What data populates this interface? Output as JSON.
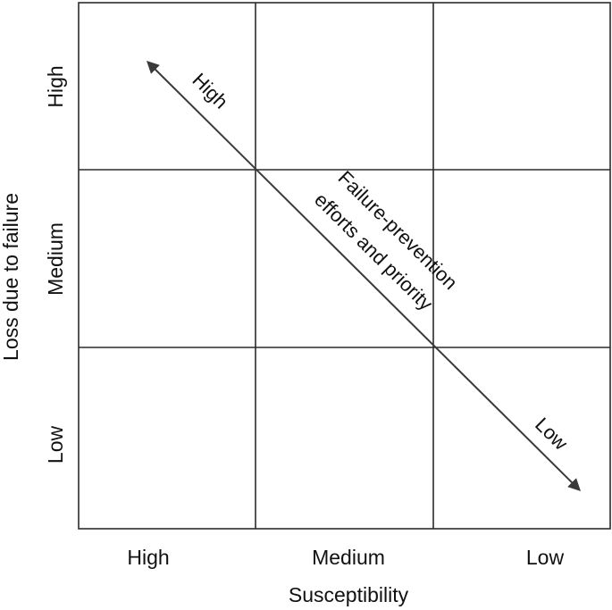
{
  "x_axis": {
    "title": "Susceptibility",
    "ticks": [
      "High",
      "Medium",
      "Low"
    ]
  },
  "y_axis": {
    "title": "Loss due to failure",
    "ticks": [
      "High",
      "Medium",
      "Low"
    ]
  },
  "arrow": {
    "high_end_label": "High",
    "low_end_label": "Low",
    "caption_line1": "Failure-prevention",
    "caption_line2": "efforts and priority"
  },
  "colors": {
    "grid": "#2b2b2b",
    "arrow": "#3a3a3a",
    "text": "#111111"
  }
}
